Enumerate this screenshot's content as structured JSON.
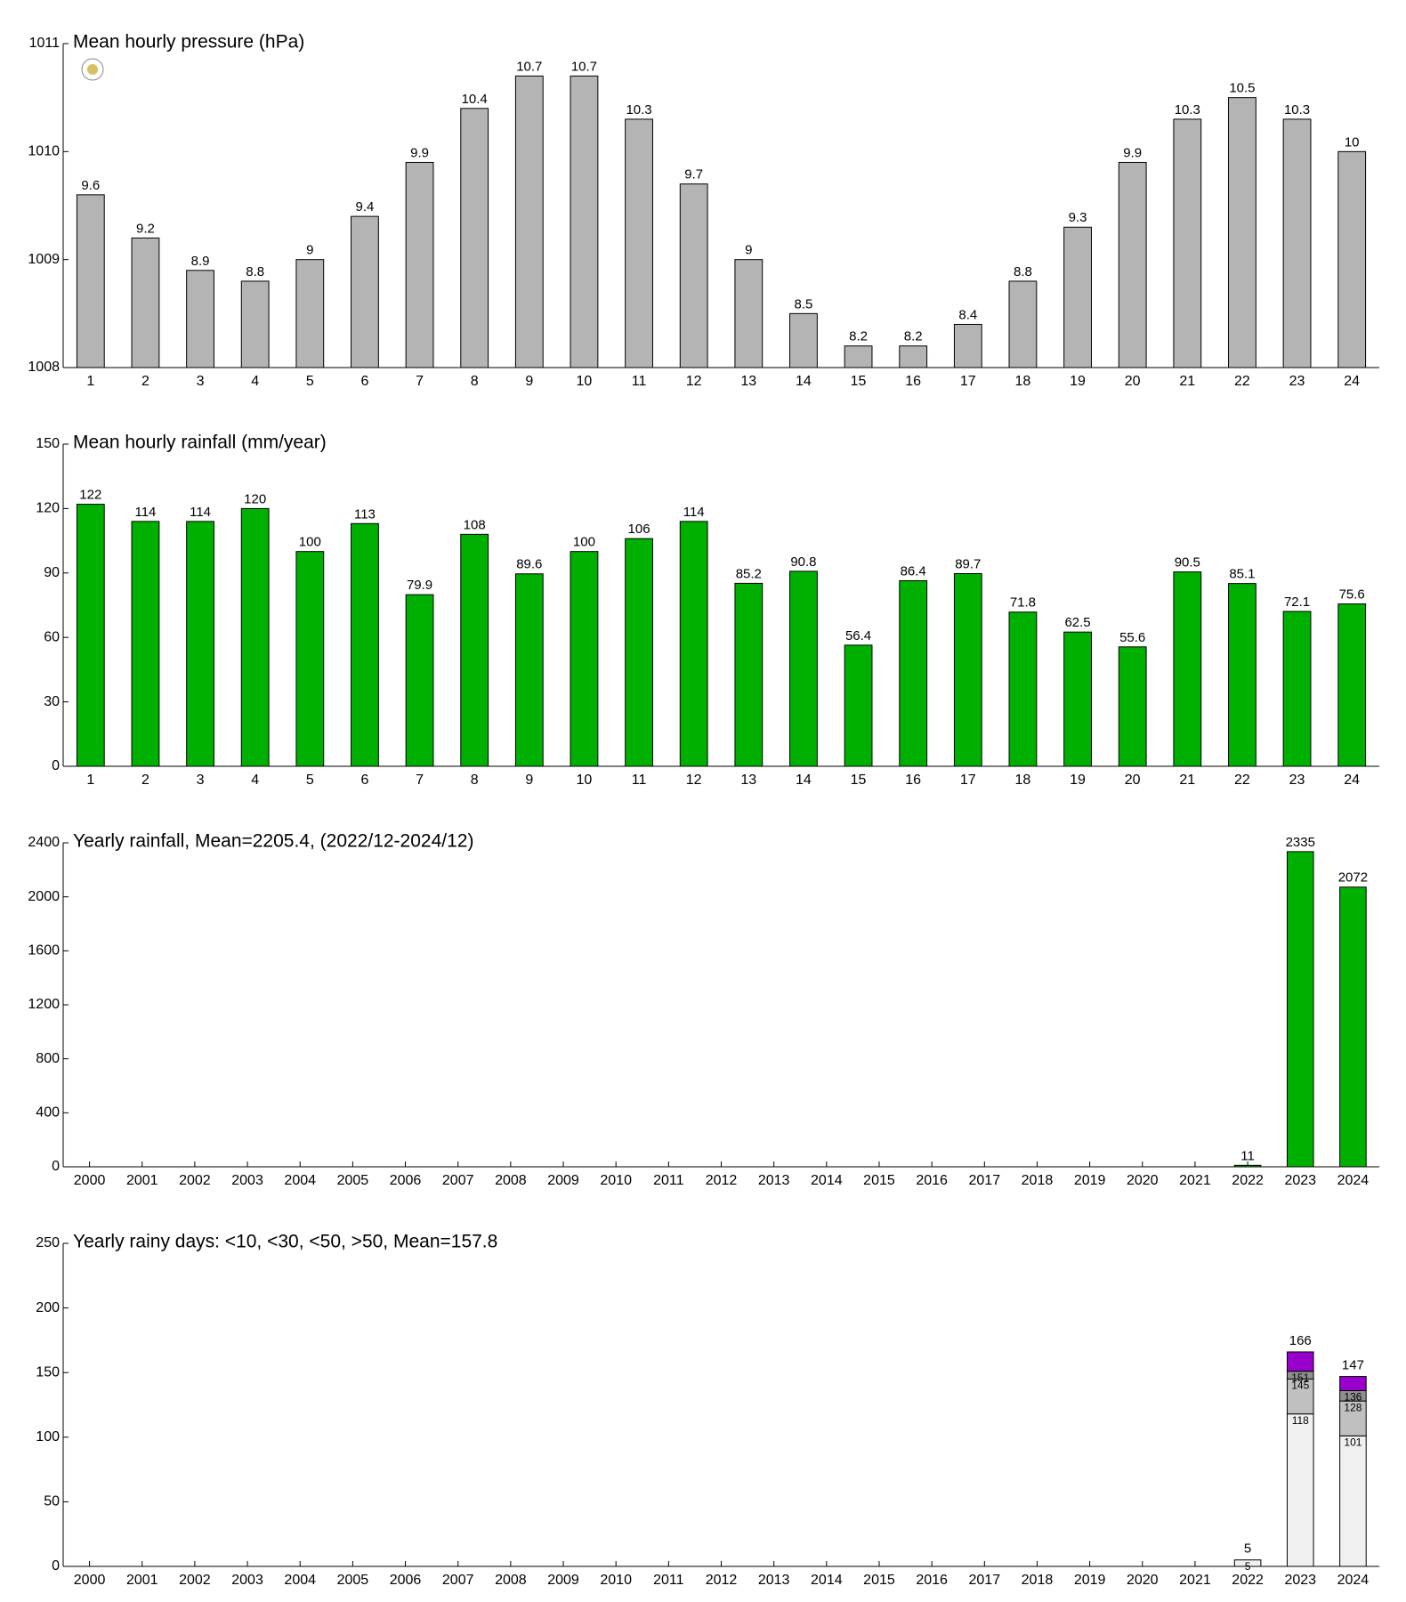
{
  "chart_data": [
    {
      "type": "bar",
      "title": "Mean hourly pressure (hPa)",
      "categories": [
        "1",
        "2",
        "3",
        "4",
        "5",
        "6",
        "7",
        "8",
        "9",
        "10",
        "11",
        "12",
        "13",
        "14",
        "15",
        "16",
        "17",
        "18",
        "19",
        "20",
        "21",
        "22",
        "23",
        "24"
      ],
      "values": [
        1009.6,
        1009.2,
        1008.9,
        1008.8,
        1009,
        1009.4,
        1009.9,
        1010.4,
        1010.7,
        1010.7,
        1010.3,
        1009.7,
        1009,
        1008.5,
        1008.2,
        1008.2,
        1008.4,
        1008.8,
        1009.3,
        1009.9,
        1010.3,
        1010.5,
        1010.3,
        1010
      ],
      "value_labels": [
        "9.6",
        "9.2",
        "8.9",
        "8.8",
        "9",
        "9.4",
        "9.9",
        "10.4",
        "10.7",
        "10.7",
        "10.3",
        "9.7",
        "9",
        "8.5",
        "8.2",
        "8.2",
        "8.4",
        "8.8",
        "9.3",
        "9.9",
        "10.3",
        "10.5",
        "10.3",
        "10"
      ],
      "color": "#b4b4b4",
      "ylim": [
        1008,
        1011
      ],
      "yticks": [
        1008,
        1009,
        1010,
        1011
      ],
      "grid": false
    },
    {
      "type": "bar",
      "title": "Mean hourly rainfall (mm/year)",
      "categories": [
        "1",
        "2",
        "3",
        "4",
        "5",
        "6",
        "7",
        "8",
        "9",
        "10",
        "11",
        "12",
        "13",
        "14",
        "15",
        "16",
        "17",
        "18",
        "19",
        "20",
        "21",
        "22",
        "23",
        "24"
      ],
      "values": [
        122,
        114,
        114,
        120,
        100,
        113,
        79.9,
        108,
        89.6,
        100,
        106,
        114,
        85.2,
        90.8,
        56.4,
        86.4,
        89.7,
        71.8,
        62.5,
        55.6,
        90.5,
        85.1,
        72.1,
        75.6
      ],
      "color": "#00b000",
      "ylim": [
        0,
        150
      ],
      "yticks": [
        0,
        30,
        60,
        90,
        120,
        150
      ],
      "grid": false
    },
    {
      "type": "bar",
      "title": "Yearly rainfall, Mean=2205.4, (2022/12-2024/12)",
      "categories": [
        "2000",
        "2001",
        "2002",
        "2003",
        "2004",
        "2005",
        "2006",
        "2007",
        "2008",
        "2009",
        "2010",
        "2011",
        "2012",
        "2013",
        "2014",
        "2015",
        "2016",
        "2017",
        "2018",
        "2019",
        "2020",
        "2021",
        "2022",
        "2023",
        "2024"
      ],
      "values": [
        null,
        null,
        null,
        null,
        null,
        null,
        null,
        null,
        null,
        null,
        null,
        null,
        null,
        null,
        null,
        null,
        null,
        null,
        null,
        null,
        null,
        null,
        11,
        2335,
        2072
      ],
      "color": "#00b000",
      "ylim": [
        0,
        2400
      ],
      "yticks": [
        0,
        400,
        800,
        1200,
        1600,
        2000,
        2400
      ],
      "grid": false
    },
    {
      "type": "stacked_bar",
      "title": "Yearly rainy days: <10, <30, <50, >50, Mean=157.8",
      "categories": [
        "2000",
        "2001",
        "2002",
        "2003",
        "2004",
        "2005",
        "2006",
        "2007",
        "2008",
        "2009",
        "2010",
        "2011",
        "2012",
        "2013",
        "2014",
        "2015",
        "2016",
        "2017",
        "2018",
        "2019",
        "2020",
        "2021",
        "2022",
        "2023",
        "2024"
      ],
      "series": [
        {
          "color": "#f0f0f0",
          "values": [
            null,
            null,
            null,
            null,
            null,
            null,
            null,
            null,
            null,
            null,
            null,
            null,
            null,
            null,
            null,
            null,
            null,
            null,
            null,
            null,
            null,
            null,
            5,
            118,
            101
          ],
          "cumulative_labels": [
            null,
            null,
            null,
            null,
            null,
            null,
            null,
            null,
            null,
            null,
            null,
            null,
            null,
            null,
            null,
            null,
            null,
            null,
            null,
            null,
            null,
            null,
            "5",
            "118",
            "101"
          ]
        },
        {
          "color": "#c0c0c0",
          "values": [
            null,
            null,
            null,
            null,
            null,
            null,
            null,
            null,
            null,
            null,
            null,
            null,
            null,
            null,
            null,
            null,
            null,
            null,
            null,
            null,
            null,
            null,
            0,
            27,
            27
          ],
          "cumulative_labels": [
            null,
            null,
            null,
            null,
            null,
            null,
            null,
            null,
            null,
            null,
            null,
            null,
            null,
            null,
            null,
            null,
            null,
            null,
            null,
            null,
            null,
            null,
            null,
            "145",
            "128"
          ]
        },
        {
          "color": "#909090",
          "values": [
            null,
            null,
            null,
            null,
            null,
            null,
            null,
            null,
            null,
            null,
            null,
            null,
            null,
            null,
            null,
            null,
            null,
            null,
            null,
            null,
            null,
            null,
            0,
            6,
            8
          ],
          "cumulative_labels": [
            null,
            null,
            null,
            null,
            null,
            null,
            null,
            null,
            null,
            null,
            null,
            null,
            null,
            null,
            null,
            null,
            null,
            null,
            null,
            null,
            null,
            null,
            null,
            "151",
            "136"
          ]
        },
        {
          "color": "#9900cc",
          "values": [
            null,
            null,
            null,
            null,
            null,
            null,
            null,
            null,
            null,
            null,
            null,
            null,
            null,
            null,
            null,
            null,
            null,
            null,
            null,
            null,
            null,
            null,
            0,
            15,
            11
          ],
          "cumulative_labels": [
            null,
            null,
            null,
            null,
            null,
            null,
            null,
            null,
            null,
            null,
            null,
            null,
            null,
            null,
            null,
            null,
            null,
            null,
            null,
            null,
            null,
            null,
            null,
            null,
            null
          ]
        }
      ],
      "total_labels": [
        null,
        null,
        null,
        null,
        null,
        null,
        null,
        null,
        null,
        null,
        null,
        null,
        null,
        null,
        null,
        null,
        null,
        null,
        null,
        null,
        null,
        null,
        "5",
        "166",
        "147"
      ],
      "ylim": [
        0,
        250
      ],
      "yticks": [
        0,
        50,
        100,
        150,
        200,
        250
      ],
      "grid": false
    }
  ]
}
